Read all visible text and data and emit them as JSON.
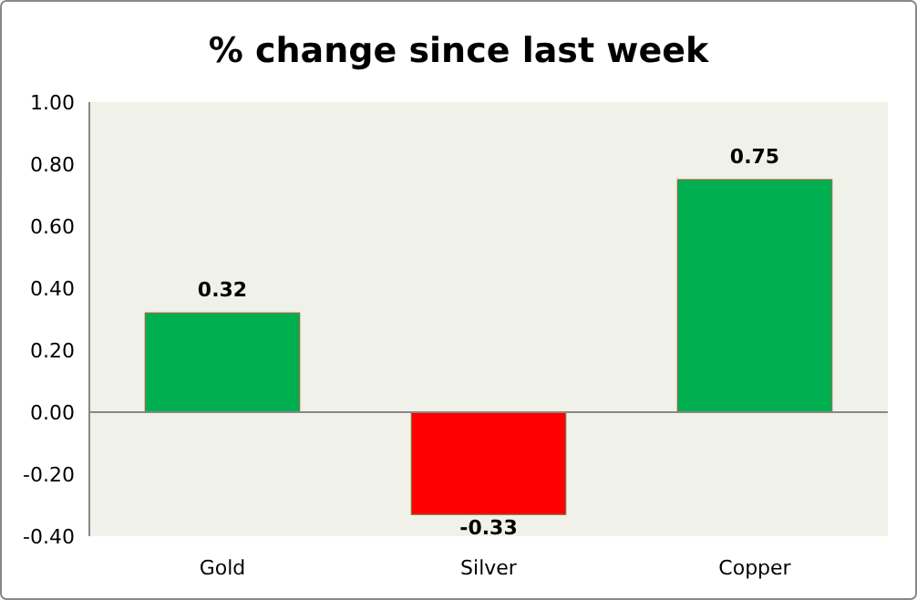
{
  "chart_data": {
    "type": "bar",
    "title": "% change since last week",
    "categories": [
      "Gold",
      "Silver",
      "Copper"
    ],
    "values": [
      0.32,
      -0.33,
      0.75
    ],
    "colors": [
      "#00b050",
      "#ff0000",
      "#00b050"
    ],
    "ylim": [
      -0.4,
      1.0
    ],
    "yticks": [
      {
        "value": -0.4,
        "label": "-0.40"
      },
      {
        "value": -0.2,
        "label": "-0.20"
      },
      {
        "value": 0,
        "label": "0.00"
      },
      {
        "value": 0.2,
        "label": "0.20"
      },
      {
        "value": 0.4,
        "label": "0.40"
      },
      {
        "value": 0.6,
        "label": "0.60"
      },
      {
        "value": 0.8,
        "label": "0.80"
      },
      {
        "value": 1.0,
        "label": "1.00"
      }
    ],
    "data_labels": true
  }
}
